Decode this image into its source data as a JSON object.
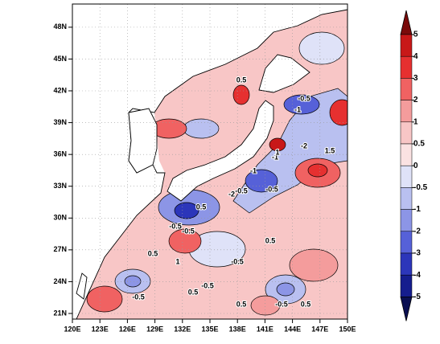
{
  "map": {
    "lon_ticks": [
      {
        "value": 120,
        "label": "120E"
      },
      {
        "value": 123,
        "label": "123E"
      },
      {
        "value": 126,
        "label": "126E"
      },
      {
        "value": 129,
        "label": "129E"
      },
      {
        "value": 132,
        "label": "132E"
      },
      {
        "value": 135,
        "label": "135E"
      },
      {
        "value": 138,
        "label": "138E"
      },
      {
        "value": 141,
        "label": "141E"
      },
      {
        "value": 144,
        "label": "144E"
      },
      {
        "value": 147,
        "label": "147E"
      },
      {
        "value": 150,
        "label": "150E"
      }
    ],
    "lat_ticks": [
      {
        "value": 21,
        "label": "21N"
      },
      {
        "value": 24,
        "label": "24N"
      },
      {
        "value": 27,
        "label": "27N"
      },
      {
        "value": 30,
        "label": "30N"
      },
      {
        "value": 33,
        "label": "33N"
      },
      {
        "value": 36,
        "label": "36N"
      },
      {
        "value": 39,
        "label": "39N"
      },
      {
        "value": 42,
        "label": "42N"
      },
      {
        "value": 45,
        "label": "45N"
      },
      {
        "value": 48,
        "label": "48N"
      }
    ],
    "contour_labels": [
      "-0.5",
      "0.5",
      "-0.5",
      "-1",
      "-1",
      "-2",
      "-1",
      "1.5",
      "-2",
      "-0.5",
      "0.5",
      "-0.5",
      "0.5",
      "1",
      "-0.5",
      "0.5",
      "-0.5",
      "0.5",
      "-0.5",
      "0.5",
      "-0.5",
      "1",
      "0.5",
      "-0.5"
    ]
  },
  "colorbar": {
    "levels": [
      5,
      4,
      3,
      2,
      1,
      0.5,
      0,
      -0.5,
      -1,
      -2,
      -3,
      -4,
      -5
    ],
    "colors": [
      "#7a0a0a",
      "#c81818",
      "#e63030",
      "#f06262",
      "#f49c9c",
      "#f8c6c6",
      "#fbe2e2",
      "#dfe2f8",
      "#b9c0f0",
      "#8c95e6",
      "#5661d8",
      "#2c36ba",
      "#151d8e",
      "#0a0f52"
    ]
  }
}
